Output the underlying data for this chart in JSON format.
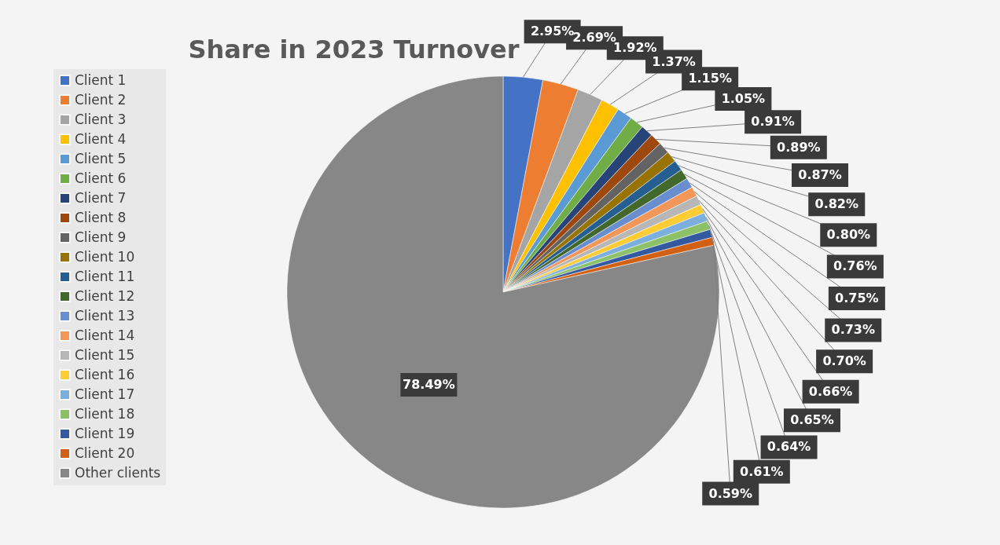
{
  "chart_data": {
    "type": "pie",
    "title": "Share in 2023 Turnover",
    "categories": [
      "Client 1",
      "Client 2",
      "Client 3",
      "Client 4",
      "Client 5",
      "Client 6",
      "Client 7",
      "Client 8",
      "Client 9",
      "Client 10",
      "Client 11",
      "Client 12",
      "Client 13",
      "Client 14",
      "Client 15",
      "Client 16",
      "Client 17",
      "Client 18",
      "Client 19",
      "Client 20",
      "Other clients"
    ],
    "values": [
      2.95,
      2.69,
      1.92,
      1.37,
      1.15,
      1.05,
      0.91,
      0.89,
      0.87,
      0.82,
      0.8,
      0.76,
      0.75,
      0.73,
      0.7,
      0.66,
      0.65,
      0.64,
      0.61,
      0.59,
      78.49
    ],
    "value_labels": [
      "2.95%",
      "2.69%",
      "1.92%",
      "1.37%",
      "1.15%",
      "1.05%",
      "0.91%",
      "0.89%",
      "0.87%",
      "0.82%",
      "0.80%",
      "0.76%",
      "0.75%",
      "0.73%",
      "0.70%",
      "0.66%",
      "0.65%",
      "0.64%",
      "0.61%",
      "0.59%",
      "78.49%"
    ],
    "colors": [
      "#4472c4",
      "#ed7d31",
      "#a5a5a5",
      "#ffc000",
      "#5b9bd5",
      "#70ad47",
      "#264478",
      "#9e480e",
      "#636363",
      "#997300",
      "#255e91",
      "#43682b",
      "#698ed0",
      "#f1975a",
      "#b7b7b7",
      "#ffcd33",
      "#7cafdd",
      "#8cc168",
      "#335aa1",
      "#d26012",
      "#878787"
    ],
    "legend": "left"
  }
}
